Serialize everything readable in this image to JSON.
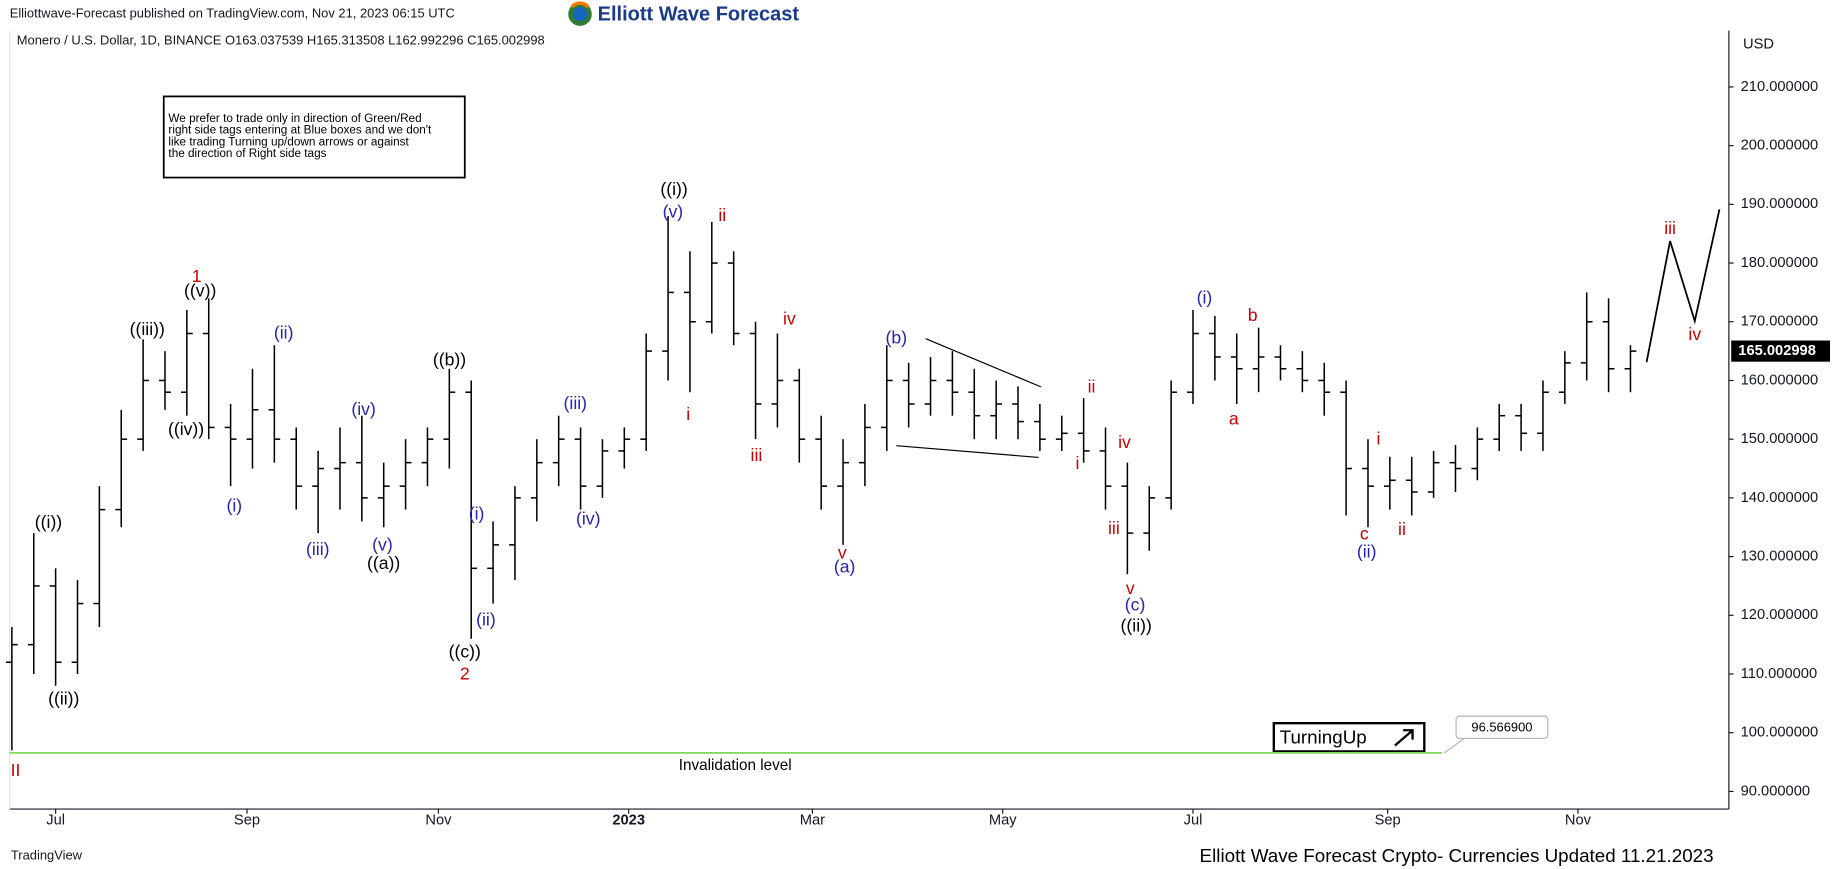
{
  "header": {
    "published": "Elliottwave-Forecast published on TradingView.com, Nov 21, 2023 06:15 UTC",
    "logo": "Elliott Wave Forecast",
    "symbol": "Monero / U.S. Dollar, 1D, BINANCE  O163.037539  H165.313508  L162.992296  C165.002998",
    "currency": "USD"
  },
  "note": [
    "We prefer to trade only in direction of Green/Red",
    "right side tags entering at Blue boxes and we don't",
    "like trading Turning up/down arrows or against",
    "the direction of Right side tags"
  ],
  "footer": {
    "brand": "TradingView",
    "caption": "Elliott Wave Forecast Crypto- Currencies Updated 11.21.2023"
  },
  "chart_data": {
    "type": "ohlc",
    "color": "#000000",
    "x": [
      0,
      1,
      2,
      3,
      4,
      5,
      6,
      7,
      8,
      9,
      10,
      11,
      12,
      13,
      14,
      15,
      16,
      17,
      18,
      19,
      20,
      21,
      22,
      23,
      24,
      25,
      26,
      27,
      28,
      29,
      30,
      31,
      32,
      33,
      34,
      35,
      36,
      37,
      38,
      39,
      40,
      41,
      42,
      43,
      44,
      45,
      46,
      47,
      48,
      49,
      50,
      51,
      52,
      53,
      54,
      55,
      56,
      57,
      58,
      59,
      60,
      61,
      62,
      63,
      64,
      65,
      66,
      67,
      68,
      69,
      70,
      71,
      72,
      73,
      74
    ],
    "open": [
      112,
      115,
      125,
      112,
      122,
      138,
      150,
      160,
      158,
      168,
      152,
      150,
      155,
      150,
      142,
      145,
      146,
      140,
      142,
      146,
      150,
      158,
      128,
      132,
      140,
      146,
      150,
      142,
      148,
      150,
      165,
      175,
      170,
      180,
      168,
      156,
      160,
      150,
      142,
      146,
      152,
      160,
      156,
      160,
      158,
      154,
      156,
      153,
      150,
      151,
      148,
      142,
      134,
      140,
      158,
      168,
      164,
      162,
      164,
      162,
      160,
      158,
      145,
      142,
      143,
      141,
      146,
      145,
      150,
      154,
      151,
      158,
      163,
      170,
      162
    ],
    "high": [
      118,
      134,
      128,
      126,
      142,
      155,
      167,
      165,
      172,
      174,
      156,
      162,
      166,
      152,
      148,
      152,
      154,
      146,
      150,
      152,
      162,
      160,
      136,
      142,
      150,
      154,
      152,
      150,
      152,
      168,
      188,
      182,
      187,
      182,
      170,
      168,
      162,
      154,
      150,
      156,
      166,
      163,
      164,
      165,
      162,
      160,
      159,
      156,
      154,
      157,
      152,
      146,
      142,
      160,
      172,
      171,
      168,
      169,
      166,
      165,
      163,
      160,
      150,
      147,
      147,
      148,
      149,
      152,
      156,
      156,
      160,
      165,
      175,
      174,
      166
    ],
    "low": [
      97,
      110,
      108,
      110,
      118,
      135,
      148,
      155,
      154,
      150,
      142,
      145,
      146,
      138,
      134,
      138,
      136,
      135,
      138,
      142,
      145,
      116,
      122,
      126,
      136,
      142,
      138,
      140,
      145,
      148,
      160,
      158,
      168,
      166,
      150,
      152,
      146,
      138,
      132,
      142,
      148,
      152,
      154,
      154,
      150,
      150,
      150,
      148,
      148,
      146,
      138,
      127,
      131,
      138,
      156,
      160,
      156,
      158,
      160,
      158,
      154,
      137,
      135,
      138,
      137,
      140,
      141,
      143,
      148,
      148,
      148,
      156,
      160,
      158,
      158
    ],
    "close": [
      115,
      125,
      112,
      122,
      138,
      150,
      160,
      158,
      168,
      152,
      150,
      155,
      150,
      142,
      145,
      146,
      140,
      142,
      146,
      150,
      158,
      128,
      132,
      140,
      146,
      150,
      142,
      148,
      150,
      165,
      175,
      170,
      180,
      168,
      156,
      160,
      150,
      142,
      146,
      152,
      160,
      156,
      160,
      158,
      154,
      156,
      153,
      150,
      151,
      148,
      142,
      134,
      140,
      158,
      168,
      164,
      162,
      164,
      162,
      160,
      158,
      145,
      142,
      143,
      141,
      146,
      145,
      150,
      154,
      151,
      158,
      163,
      170,
      162,
      165
    ],
    "xlim": [
      -0.1,
      78.5
    ],
    "xticks": [
      {
        "value": 2,
        "label": "Jul"
      },
      {
        "value": 10.75,
        "label": "Sep"
      },
      {
        "value": 19.5,
        "label": "Nov"
      },
      {
        "value": 28.2,
        "label": "2023"
      },
      {
        "value": 36.6,
        "label": "Mar"
      },
      {
        "value": 45.3,
        "label": "May"
      },
      {
        "value": 54,
        "label": "Jul"
      },
      {
        "value": 62.9,
        "label": "Sep"
      },
      {
        "value": 71.6,
        "label": "Nov"
      }
    ],
    "ylim": [
      87,
      219.6
    ],
    "yticks": [
      {
        "value": 90,
        "label": "90.000000"
      },
      {
        "value": 100,
        "label": "100.000000"
      },
      {
        "value": 110,
        "label": "110.000000"
      },
      {
        "value": 120,
        "label": "120.000000"
      },
      {
        "value": 130,
        "label": "130.000000"
      },
      {
        "value": 140,
        "label": "140.000000"
      },
      {
        "value": 150,
        "label": "150.000000"
      },
      {
        "value": 160,
        "label": "160.000000"
      },
      {
        "value": 170,
        "label": "170.000000"
      },
      {
        "value": 180,
        "label": "180.000000"
      },
      {
        "value": 190,
        "label": "190.000000"
      },
      {
        "value": 200,
        "label": "200.000000"
      },
      {
        "value": 210,
        "label": "210.000000"
      }
    ],
    "last_price": 165.002998,
    "invalidation": {
      "value": 96.5669,
      "label": "96.566900",
      "text": "Invalidation level",
      "color": "#7ed957"
    },
    "signal": "TurningUp",
    "annotations": [
      {
        "text": "((i))",
        "color": "#000000"
      },
      {
        "text": "(v)",
        "color": "#2323b4"
      },
      {
        "text": "ii",
        "color": "#cc0000"
      },
      {
        "text": "1",
        "color": "#cc0000"
      },
      {
        "text": "((v))",
        "color": "#000000"
      },
      {
        "text": "((iii))",
        "color": "#000000"
      },
      {
        "text": "(ii)",
        "color": "#2323b4"
      },
      {
        "text": "((iv))",
        "color": "#000000"
      },
      {
        "text": "(i)",
        "color": "#2323b4"
      },
      {
        "text": "(iii)",
        "color": "#2323b4"
      },
      {
        "text": "(iv)",
        "color": "#2323b4"
      },
      {
        "text": "(v)",
        "color": "#2323b4"
      },
      {
        "text": "((a))",
        "color": "#000000"
      },
      {
        "text": "((b))",
        "color": "#000000"
      },
      {
        "text": "(i)",
        "color": "#2323b4"
      },
      {
        "text": "(ii)",
        "color": "#2323b4"
      },
      {
        "text": "((c))",
        "color": "#000000"
      },
      {
        "text": "2",
        "color": "#cc0000"
      },
      {
        "text": "((i))",
        "color": "#000000"
      },
      {
        "text": "((ii))",
        "color": "#000000"
      },
      {
        "text": "II",
        "color": "#cc0000"
      },
      {
        "text": "(iii)",
        "color": "#2323b4"
      },
      {
        "text": "(iv)",
        "color": "#2323b4"
      },
      {
        "text": "i",
        "color": "#cc0000"
      },
      {
        "text": "iii",
        "color": "#cc0000"
      },
      {
        "text": "iv",
        "color": "#cc0000"
      },
      {
        "text": "v",
        "color": "#cc0000"
      },
      {
        "text": "(a)",
        "color": "#2323b4"
      },
      {
        "text": "(b)",
        "color": "#2323b4"
      },
      {
        "text": "ii",
        "color": "#cc0000"
      },
      {
        "text": "i",
        "color": "#cc0000"
      },
      {
        "text": "iv",
        "color": "#cc0000"
      },
      {
        "text": "iii",
        "color": "#cc0000"
      },
      {
        "text": "v",
        "color": "#cc0000"
      },
      {
        "text": "(c)",
        "color": "#2323b4"
      },
      {
        "text": "((ii))",
        "color": "#000000"
      },
      {
        "text": "(i)",
        "color": "#2323b4"
      },
      {
        "text": "b",
        "color": "#cc0000"
      },
      {
        "text": "a",
        "color": "#cc0000"
      },
      {
        "text": "i",
        "color": "#cc0000"
      },
      {
        "text": "c",
        "color": "#cc0000"
      },
      {
        "text": "(ii)",
        "color": "#2323b4"
      },
      {
        "text": "ii",
        "color": "#cc0000"
      },
      {
        "text": "iii",
        "color": "#cc0000"
      },
      {
        "text": "iv",
        "color": "#cc0000"
      }
    ]
  }
}
